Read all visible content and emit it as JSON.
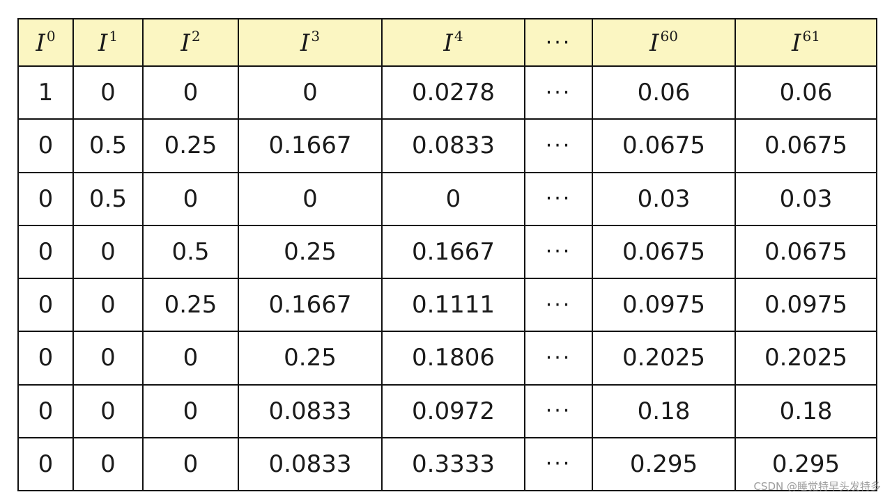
{
  "table": {
    "headers": [
      {
        "base": "I",
        "sup": "0"
      },
      {
        "base": "I",
        "sup": "1"
      },
      {
        "base": "I",
        "sup": "2"
      },
      {
        "base": "I",
        "sup": "3"
      },
      {
        "base": "I",
        "sup": "4"
      },
      {
        "base": "···",
        "sup": ""
      },
      {
        "base": "I",
        "sup": "60"
      },
      {
        "base": "I",
        "sup": "61"
      }
    ],
    "rows": [
      [
        "1",
        "0",
        "0",
        "0",
        "0.0278",
        "···",
        "0.06",
        "0.06"
      ],
      [
        "0",
        "0.5",
        "0.25",
        "0.1667",
        "0.0833",
        "···",
        "0.0675",
        "0.0675"
      ],
      [
        "0",
        "0.5",
        "0",
        "0",
        "0",
        "···",
        "0.03",
        "0.03"
      ],
      [
        "0",
        "0",
        "0.5",
        "0.25",
        "0.1667",
        "···",
        "0.0675",
        "0.0675"
      ],
      [
        "0",
        "0",
        "0.25",
        "0.1667",
        "0.1111",
        "···",
        "0.0975",
        "0.0975"
      ],
      [
        "0",
        "0",
        "0",
        "0.25",
        "0.1806",
        "···",
        "0.2025",
        "0.2025"
      ],
      [
        "0",
        "0",
        "0",
        "0.0833",
        "0.0972",
        "···",
        "0.18",
        "0.18"
      ],
      [
        "0",
        "0",
        "0",
        "0.0833",
        "0.3333",
        "···",
        "0.295",
        "0.295"
      ]
    ]
  },
  "colors": {
    "header_background": "#fbf6c2",
    "border": "#111111",
    "text": "#1a1a1a"
  },
  "watermark": "CSDN @睡觉特早头发特多"
}
